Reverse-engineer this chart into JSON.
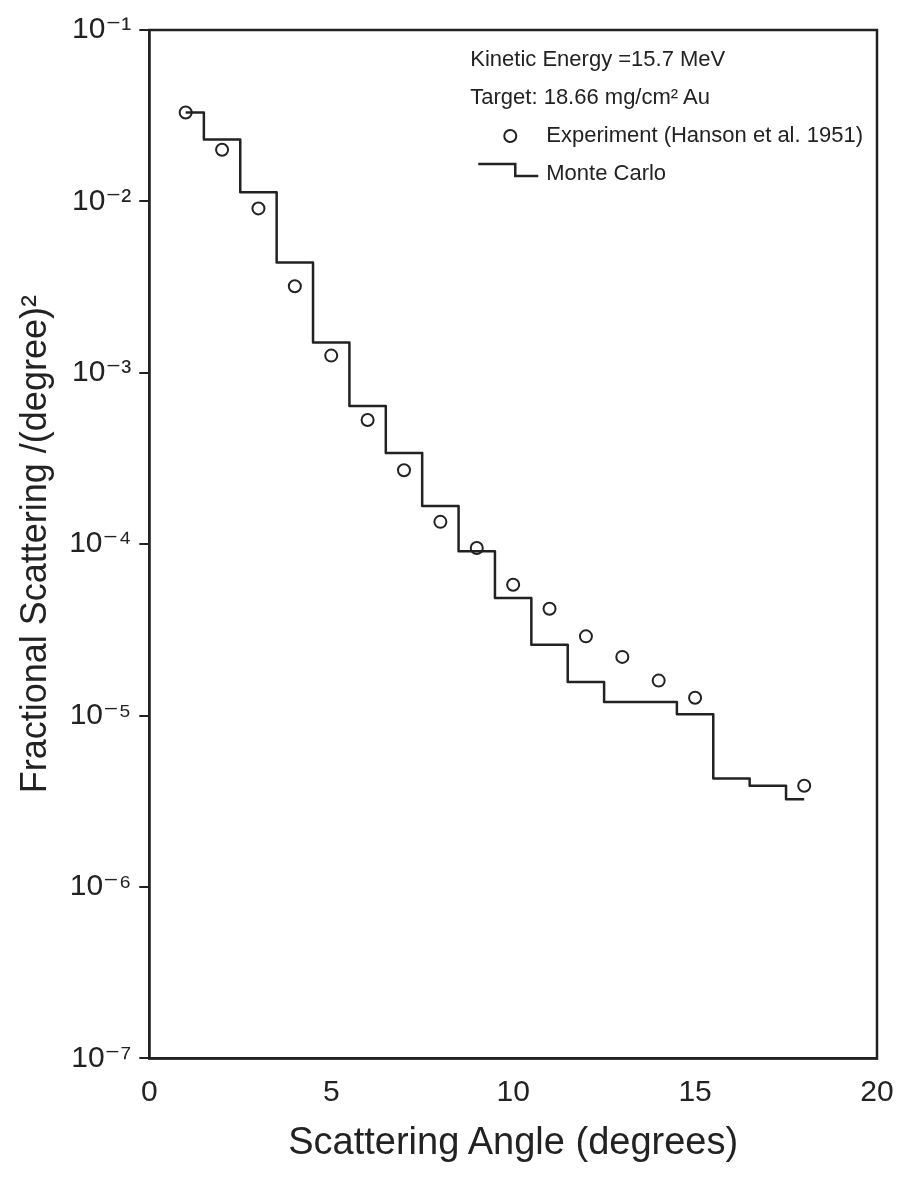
{
  "chart_data": {
    "type": "scatter",
    "xlabel": "Scattering Angle (degrees)",
    "ylabel": "Fractional Scattering /(degree)²",
    "annotations": [
      "Kinetic Energy =15.7 MeV",
      "Target: 18.66 mg/cm² Au"
    ],
    "xlim": [
      0,
      20
    ],
    "xticks": [
      0,
      5,
      10,
      15,
      20
    ],
    "ylim": [
      1e-07,
      0.1
    ],
    "log": "y",
    "yticks": [
      {
        "value": 0.1,
        "label": "10⁻¹"
      },
      {
        "value": 0.01,
        "label": "10⁻²"
      },
      {
        "value": 0.001,
        "label": "10⁻³"
      },
      {
        "value": 0.0001,
        "label": "10⁻⁴"
      },
      {
        "value": 1e-05,
        "label": "10⁻⁵"
      },
      {
        "value": 1e-06,
        "label": "10⁻⁶"
      },
      {
        "value": 1e-07,
        "label": "10⁻⁷"
      }
    ],
    "grid": false,
    "legend": "top right",
    "series": [
      {
        "type": "scatter",
        "name": "Experiment (Hanson et al. 1951)",
        "color": "#222222",
        "marker": "circle",
        "x": [
          1,
          2,
          3,
          4,
          5,
          6,
          7,
          8,
          9,
          10,
          11,
          12,
          13,
          14,
          15,
          18
        ],
        "values": [
          0.033,
          0.02,
          0.0091,
          0.0032,
          0.00126,
          0.00053,
          0.00027,
          0.000135,
          9.5e-05,
          5.8e-05,
          4.2e-05,
          2.9e-05,
          2.2e-05,
          1.6e-05,
          1.27e-05,
          3.9e-06
        ]
      },
      {
        "type": "step",
        "name": "Monte Carlo",
        "color": "#222222",
        "line_style": "solid",
        "x": [
          1,
          2,
          3,
          4,
          5,
          6,
          7,
          8,
          9,
          10,
          11,
          12,
          13,
          14,
          15,
          16,
          17,
          18
        ],
        "values": [
          0.033,
          0.023,
          0.0113,
          0.0044,
          0.0015,
          0.00064,
          0.00034,
          0.000167,
          9.1e-05,
          4.85e-05,
          2.59e-05,
          1.57e-05,
          1.2e-05,
          1.2e-05,
          1.02e-05,
          4.3e-06,
          3.9e-06,
          3.25e-06
        ]
      }
    ]
  }
}
